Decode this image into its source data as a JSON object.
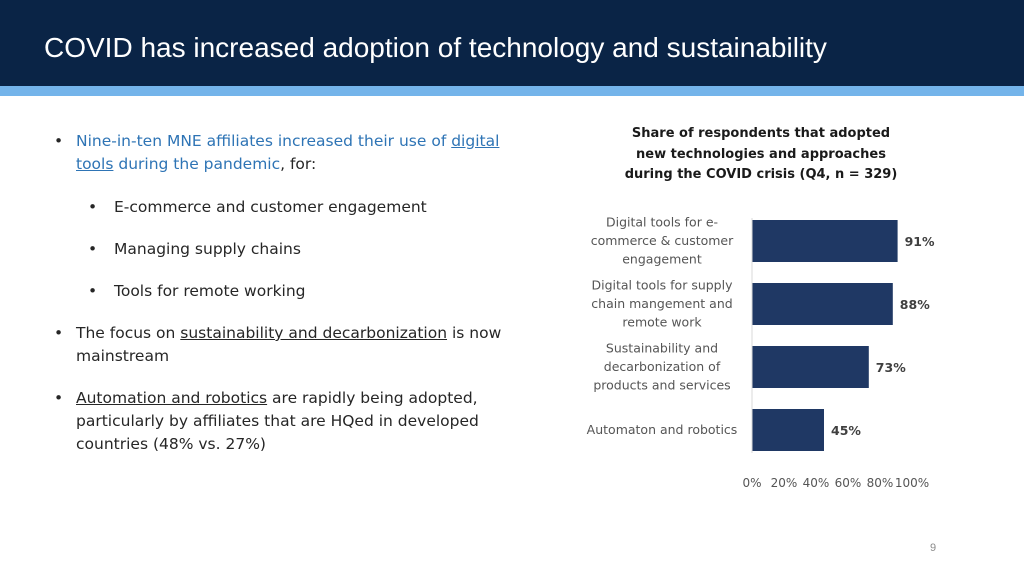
{
  "slide": {
    "title": "COVID has increased adoption of technology and sustainability",
    "page_number": "9"
  },
  "bullets": {
    "b1_part1": "Nine-in-ten MNE affiliates increased their use of ",
    "b1_link": "digital",
    "b1_line2_link": "tools",
    "b1_line2_mid": " during the pandemic",
    "b1_line2_end": ", for:",
    "sub1": "E-commerce and customer engagement",
    "sub2": "Managing supply chains",
    "sub3": "Tools for remote working",
    "b2_pre": "The focus on ",
    "b2_link": "sustainability and decarbonization",
    "b2_post": " is now",
    "b2_line2": "mainstream",
    "b3_link": "Automation and robotics",
    "b3_post": " are rapidly being adopted,",
    "b3_line2": "particularly by affiliates that are HQed in developed",
    "b3_line3": "countries (48% vs. 27%)",
    "bullet_char": "•"
  },
  "chart_data": {
    "type": "bar",
    "orientation": "horizontal",
    "title": "Share of respondents that adopted new technologies and approaches during the COVID crisis (Q4, n = 329)",
    "title_lines": [
      "Share of respondents that adopted",
      "new technologies and approaches",
      "during the COVID crisis (Q4, n = 329)"
    ],
    "categories": [
      [
        "Digital tools for e-",
        "commerce & customer",
        "engagement"
      ],
      [
        "Digital tools for supply",
        "chain mangement and",
        "remote work"
      ],
      [
        "Sustainability and",
        "decarbonization of",
        "products and services"
      ],
      [
        "Automaton and robotics"
      ]
    ],
    "values": [
      91,
      88,
      73,
      45
    ],
    "value_labels": [
      "91%",
      "88%",
      "73%",
      "45%"
    ],
    "xlim": [
      0,
      100
    ],
    "xticks": [
      "0%",
      "20%",
      "40%",
      "60%",
      "80%",
      "100%"
    ],
    "bar_color": "#1f3864",
    "grid": false
  }
}
